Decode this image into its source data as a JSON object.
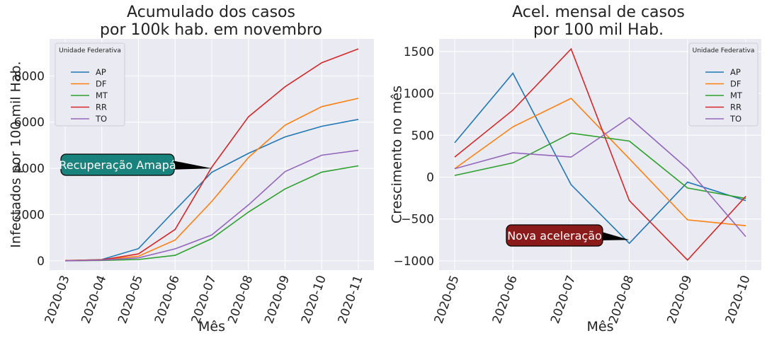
{
  "series_colors": {
    "AP": "#1f77b4",
    "DF": "#ff7f0e",
    "MT": "#2ca02c",
    "RR": "#d62728",
    "TO": "#9467bd"
  },
  "chart_data": [
    {
      "type": "line",
      "title_line1": "Acumulado dos casos",
      "title_line2": "por 100k hab. em novembro",
      "xlabel": "Mês",
      "ylabel": "Infectados por 100 mil Hab.",
      "categories": [
        "2020-03",
        "2020-04",
        "2020-05",
        "2020-06",
        "2020-07",
        "2020-08",
        "2020-09",
        "2020-10",
        "2020-11"
      ],
      "ylim": [
        -400,
        9600
      ],
      "yticks": [
        0,
        2000,
        4000,
        6000,
        8000
      ],
      "ytick_labels": [
        "0",
        "2000",
        "4000",
        "6000",
        "8000"
      ],
      "grid": true,
      "legend_title": "Unidade Federativa",
      "legend_position": "top-left",
      "series": [
        {
          "name": "AP",
          "values": [
            10,
            60,
            530,
            2200,
            3830,
            4650,
            5360,
            5820,
            6120
          ]
        },
        {
          "name": "DF",
          "values": [
            15,
            50,
            200,
            900,
            2570,
            4470,
            5870,
            6670,
            7030
          ]
        },
        {
          "name": "MT",
          "values": [
            5,
            20,
            60,
            240,
            960,
            2110,
            3110,
            3840,
            4110
          ]
        },
        {
          "name": "RR",
          "values": [
            10,
            40,
            300,
            1360,
            4050,
            6230,
            7530,
            8570,
            9170
          ]
        },
        {
          "name": "TO",
          "values": [
            5,
            30,
            130,
            520,
            1120,
            2420,
            3860,
            4570,
            4780
          ]
        }
      ],
      "annotation": {
        "text": "Recuperação Amapá",
        "target_x": "2020-07",
        "target_y": 4000,
        "color": "#1a827c"
      }
    },
    {
      "type": "line",
      "title_line1": "Acel. mensal de casos",
      "title_line2": "por 100 mil Hab.",
      "xlabel": "Mês",
      "ylabel": "Crescimento no mês",
      "categories": [
        "2020-05",
        "2020-06",
        "2020-07",
        "2020-08",
        "2020-09",
        "2020-10"
      ],
      "ylim": [
        -1110,
        1650
      ],
      "yticks": [
        -1000,
        -500,
        0,
        500,
        1000,
        1500
      ],
      "ytick_labels": [
        "−1000",
        "−500",
        "0",
        "500",
        "1000",
        "1500"
      ],
      "grid": true,
      "legend_title": "Unidade Federativa",
      "legend_position": "top-right",
      "series": [
        {
          "name": "AP",
          "values": [
            410,
            1240,
            -90,
            -790,
            -60,
            -280
          ]
        },
        {
          "name": "DF",
          "values": [
            100,
            600,
            940,
            220,
            -510,
            -580
          ]
        },
        {
          "name": "MT",
          "values": [
            20,
            170,
            525,
            430,
            -130,
            -255
          ]
        },
        {
          "name": "RR",
          "values": [
            240,
            800,
            1530,
            -280,
            -990,
            -230
          ]
        },
        {
          "name": "TO",
          "values": [
            100,
            290,
            240,
            710,
            100,
            -710
          ]
        }
      ],
      "annotation": {
        "text": "Nova aceleração",
        "target_x": "2020-08",
        "target_y": -750,
        "color": "#8b1a1a"
      }
    }
  ]
}
